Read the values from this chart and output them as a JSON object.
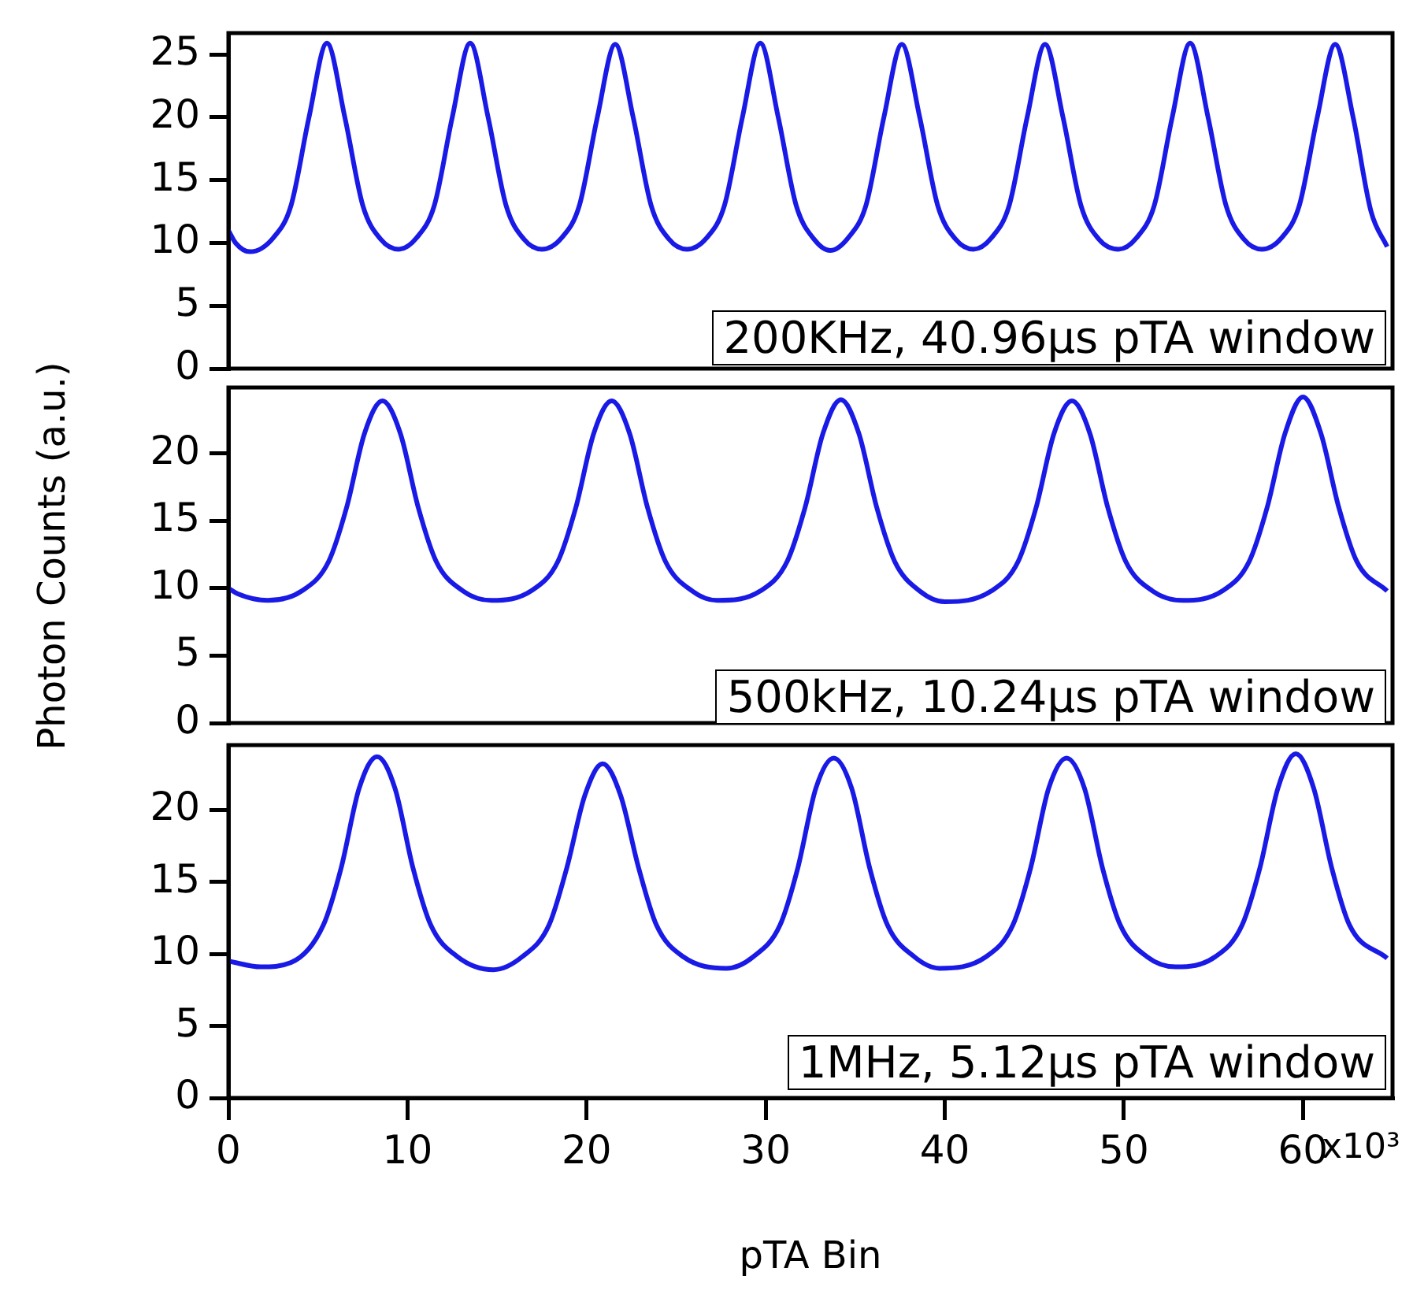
{
  "chart_data": [
    {
      "type": "line",
      "xlim": [
        0,
        65
      ],
      "ylim": [
        0,
        26.7
      ],
      "yticks": [
        0,
        5,
        10,
        15,
        20,
        25
      ],
      "tick_labels": "y",
      "marker": "none",
      "annotations": [
        "200KHz, 40.96μs pTA window"
      ],
      "series": [
        {
          "color": "#1a1ae6",
          "x": [
            0,
            0.4,
            1.2,
            2.5,
            3.5,
            4.5,
            5.5,
            6.5,
            7.5,
            8.5,
            9.5,
            10.5,
            11.5,
            12.5,
            13.5,
            14.5,
            15.5,
            16.5,
            17.5,
            18.6,
            19.6,
            20.6,
            21.6,
            22.6,
            23.6,
            24.6,
            25.6,
            26.7,
            27.7,
            28.7,
            29.7,
            30.7,
            31.7,
            32.7,
            33.6,
            34.6,
            35.6,
            36.6,
            37.6,
            38.6,
            39.6,
            40.6,
            41.6,
            42.6,
            43.6,
            44.6,
            45.6,
            46.6,
            47.6,
            48.6,
            49.7,
            50.7,
            51.7,
            52.7,
            53.7,
            54.7,
            55.7,
            56.7,
            57.7,
            58.8,
            59.8,
            60.8,
            61.8,
            62.8,
            63.8,
            64.7
          ],
          "values": [
            11,
            10,
            9.3,
            10.4,
            13,
            20,
            25.9,
            20,
            13,
            10.3,
            9.5,
            10.4,
            13,
            20,
            25.9,
            20,
            13,
            10.3,
            9.5,
            10.4,
            13,
            20,
            25.8,
            20,
            13,
            10.3,
            9.5,
            10.4,
            13,
            20,
            25.9,
            20,
            13,
            10.3,
            9.4,
            10.4,
            13,
            20,
            25.8,
            20,
            13,
            10.3,
            9.5,
            10.4,
            13,
            20,
            25.8,
            20,
            13,
            10.3,
            9.5,
            10.4,
            13,
            20,
            25.9,
            20,
            13,
            10.3,
            9.5,
            10.4,
            13,
            20,
            25.8,
            20,
            12.5,
            9.7
          ]
        }
      ]
    },
    {
      "type": "line",
      "xlim": [
        0,
        65
      ],
      "ylim": [
        0,
        24.9
      ],
      "yticks": [
        0,
        5,
        10,
        15,
        20
      ],
      "tick_labels": "y",
      "marker": "none",
      "ylabel": "Photon Counts (a.u.)",
      "annotations": [
        "500kHz, 10.24μs pTA window"
      ],
      "series": [
        {
          "color": "#1a1ae6",
          "x": [
            0,
            0.5,
            2.2,
            4.1,
            5.6,
            6.6,
            7.6,
            8.6,
            9.6,
            10.6,
            11.6,
            13.1,
            14.7,
            16.9,
            18.4,
            19.4,
            20.4,
            21.4,
            22.4,
            23.4,
            24.4,
            25.9,
            27.3,
            29.7,
            31.2,
            32.2,
            33.2,
            34.2,
            35.2,
            36.2,
            37.2,
            38.6,
            40,
            42.6,
            44.1,
            45.1,
            46.1,
            47.1,
            48.1,
            49.1,
            50.1,
            51.6,
            53.3,
            55.5,
            57,
            58,
            59,
            60,
            61,
            62,
            63,
            64.7
          ],
          "values": [
            10,
            9.6,
            9.1,
            9.8,
            12,
            16,
            21.5,
            23.9,
            21.5,
            16,
            12,
            9.8,
            9.1,
            9.8,
            12,
            16,
            21.5,
            23.9,
            21.5,
            16,
            12,
            9.8,
            9.1,
            9.8,
            12,
            16,
            21.5,
            24,
            21.5,
            16,
            12,
            9.8,
            9,
            9.8,
            12,
            16,
            21.5,
            23.9,
            21.5,
            16,
            12,
            9.8,
            9.1,
            9.8,
            12,
            16,
            21.5,
            24.2,
            21.5,
            16,
            12,
            9.8
          ]
        }
      ]
    },
    {
      "type": "line",
      "xlim": [
        0,
        65
      ],
      "xticks": [
        0,
        10,
        20,
        30,
        40,
        50,
        60
      ],
      "ylim": [
        0,
        24.5
      ],
      "yticks": [
        0,
        5,
        10,
        15,
        20
      ],
      "marker": "none",
      "xlabel": "pTA Bin",
      "annotations": [
        "1MHz, 5.12μs pTA window",
        "x10³"
      ],
      "series": [
        {
          "color": "#1a1ae6",
          "x": [
            0,
            1.8,
            3.5,
            5.3,
            6.3,
            7.3,
            8.3,
            9.3,
            10.3,
            11.3,
            12.8,
            14.8,
            16.4,
            17.9,
            18.9,
            19.9,
            20.9,
            21.9,
            22.9,
            23.9,
            25.4,
            27.8,
            29.3,
            30.8,
            31.8,
            32.8,
            33.8,
            34.8,
            35.8,
            36.8,
            38.3,
            39.7,
            42.3,
            43.8,
            44.8,
            45.8,
            46.8,
            47.8,
            48.8,
            49.8,
            51.3,
            52.9,
            55.1,
            56.6,
            57.6,
            58.6,
            59.6,
            60.6,
            61.6,
            62.6,
            64.7
          ],
          "values": [
            9.5,
            9.1,
            9.4,
            12,
            16,
            21.5,
            23.7,
            21.5,
            16,
            12,
            9.8,
            8.9,
            9.8,
            12,
            16,
            21,
            23.2,
            21,
            16,
            12,
            9.8,
            9,
            9.8,
            12,
            16,
            21.5,
            23.6,
            21.5,
            16,
            12,
            9.8,
            9,
            9.8,
            12,
            16,
            21.5,
            23.6,
            21.5,
            16,
            12,
            9.8,
            9.1,
            9.8,
            12,
            16,
            21.5,
            23.9,
            21.5,
            16,
            12,
            9.7
          ]
        }
      ]
    }
  ]
}
